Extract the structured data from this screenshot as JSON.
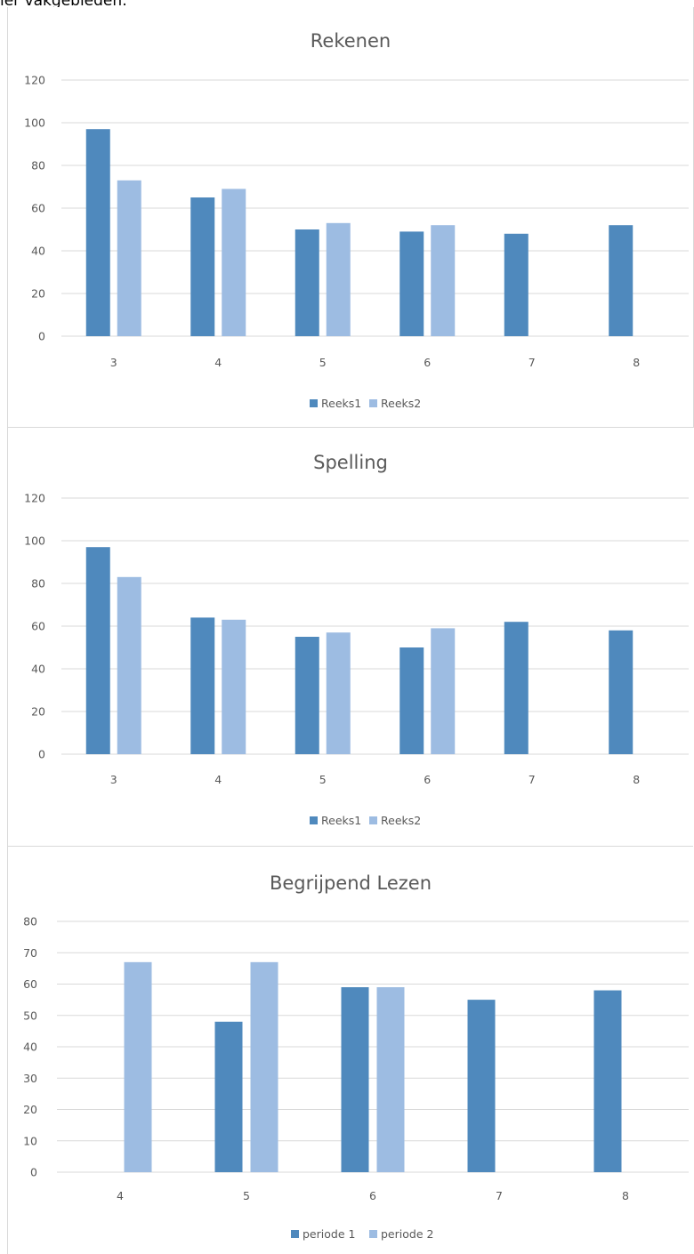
{
  "header_text": "ier vakgebieden:",
  "colors": {
    "series1": "#4f89bd",
    "series2": "#9dbce2"
  },
  "chart_data": [
    {
      "type": "bar",
      "title": "Rekenen",
      "categories": [
        "3",
        "4",
        "5",
        "6",
        "7",
        "8"
      ],
      "series": [
        {
          "name": "Reeks1",
          "values": [
            97,
            65,
            50,
            49,
            48,
            52
          ]
        },
        {
          "name": "Reeks2",
          "values": [
            73,
            69,
            53,
            52,
            null,
            null
          ]
        }
      ],
      "ylim": [
        0,
        120
      ],
      "yticks": [
        0,
        20,
        40,
        60,
        80,
        100,
        120
      ],
      "grid": true,
      "legend": "bottom-center"
    },
    {
      "type": "bar",
      "title": "Spelling",
      "categories": [
        "3",
        "4",
        "5",
        "6",
        "7",
        "8"
      ],
      "series": [
        {
          "name": "Reeks1",
          "values": [
            97,
            64,
            55,
            50,
            62,
            58
          ]
        },
        {
          "name": "Reeks2",
          "values": [
            83,
            63,
            57,
            59,
            null,
            null
          ]
        }
      ],
      "ylim": [
        0,
        120
      ],
      "yticks": [
        0,
        20,
        40,
        60,
        80,
        100,
        120
      ],
      "grid": true,
      "legend": "bottom-center"
    },
    {
      "type": "bar",
      "title": "Begrijpend Lezen",
      "categories": [
        "4",
        "5",
        "6",
        "7",
        "8"
      ],
      "series": [
        {
          "name": "periode 1",
          "values": [
            null,
            48,
            59,
            55,
            58
          ]
        },
        {
          "name": "periode 2",
          "values": [
            67,
            67,
            59,
            null,
            null
          ]
        }
      ],
      "ylim": [
        0,
        80
      ],
      "yticks": [
        0,
        10,
        20,
        30,
        40,
        50,
        60,
        70,
        80
      ],
      "grid": true,
      "legend": "bottom-center"
    }
  ]
}
